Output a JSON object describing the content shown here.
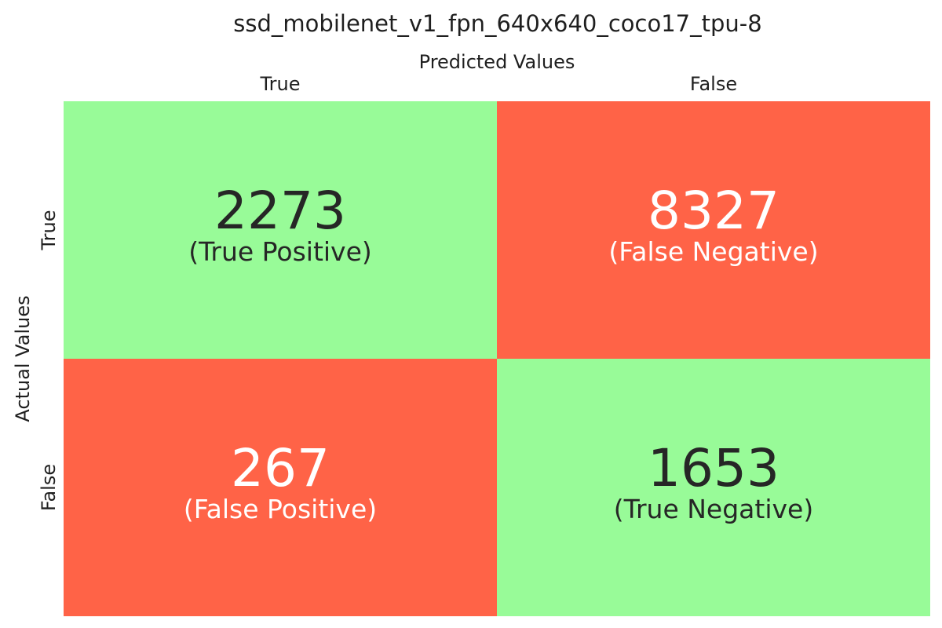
{
  "chart_data": {
    "type": "heatmap",
    "title": "ssd_mobilenet_v1_fpn_640x640_coco17_tpu-8",
    "xlabel": "Predicted Values",
    "ylabel": "Actual Values",
    "x_categories": [
      "True",
      "False"
    ],
    "y_categories": [
      "True",
      "False"
    ],
    "values": [
      [
        2273,
        8327
      ],
      [
        267,
        1653
      ]
    ],
    "cells": [
      {
        "row": 0,
        "col": 0,
        "value": "2273",
        "label": "(True Positive)",
        "fill": "#98FB98",
        "text_color": "#262626"
      },
      {
        "row": 0,
        "col": 1,
        "value": "8327",
        "label": "(False Negative)",
        "fill": "#FF6347",
        "text_color": "#FFFFFF"
      },
      {
        "row": 1,
        "col": 0,
        "value": "267",
        "label": "(False Positive)",
        "fill": "#FF6347",
        "text_color": "#FFFFFF"
      },
      {
        "row": 1,
        "col": 1,
        "value": "1653",
        "label": "(True Negative)",
        "fill": "#98FB98",
        "text_color": "#262626"
      }
    ],
    "colorbar": false,
    "grid": false
  }
}
